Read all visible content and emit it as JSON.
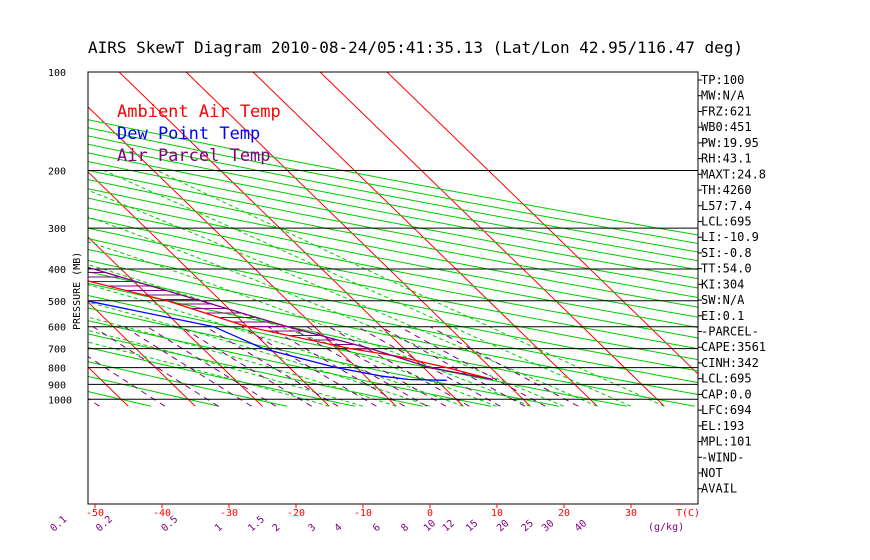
{
  "chart_data": {
    "type": "skewt",
    "title": "AIRS SkewT Diagram 2010-08-24/05:41:35.13 (Lat/Lon 42.95/116.47 deg)",
    "ylabel": "PRESSURE (MB)",
    "xlabel_bottom": "T(C)",
    "mixing_ratio_unit": "(g/kg)",
    "pressure_range": [
      100,
      1050
    ],
    "temperature_range_bottom": [
      -50,
      40
    ],
    "pressure_ticks": [
      "100",
      "200",
      "300",
      "400",
      "500",
      "600",
      "700",
      "800",
      "900",
      "1000"
    ],
    "pressure_tick_values": [
      100,
      200,
      300,
      400,
      500,
      600,
      700,
      800,
      900,
      1000
    ],
    "top_temp_ticks": [
      "-120",
      "-110",
      "-100",
      "-90",
      "-80",
      "-70",
      "-60",
      "-50",
      "-40"
    ],
    "top_temp_values": [
      -120,
      -110,
      -100,
      -90,
      -80,
      -70,
      -60,
      -50,
      -40
    ],
    "bottom_temp_ticks": [
      "-50",
      "-40",
      "-30",
      "-20",
      "-10",
      "0",
      "10",
      "20",
      "30"
    ],
    "bottom_temp_values": [
      -50,
      -40,
      -30,
      -20,
      -10,
      0,
      10,
      20,
      30
    ],
    "mixing_ratio_labels": [
      "0.1",
      "0.2",
      "0.5",
      "1",
      "1.5",
      "2",
      "3",
      "4",
      "6",
      "8",
      "10",
      "12",
      "15",
      "20",
      "25",
      "30",
      "40"
    ],
    "mixing_ratio_values": [
      0.1,
      0.2,
      0.5,
      1,
      1.5,
      2,
      3,
      4,
      6,
      8,
      10,
      12,
      15,
      20,
      25,
      30,
      40
    ],
    "legend": [
      {
        "label": "Ambient Air Temp",
        "color": "#ff0000"
      },
      {
        "label": "Dew Point Temp",
        "color": "#0000ff"
      },
      {
        "label": "Air Parcel Temp",
        "color": "#800080"
      }
    ],
    "colors": {
      "isotherm": "#ff0000",
      "dry_adiabat": "#00cc00",
      "moist_adiabat": "#00cc00",
      "mixing_ratio": "#800080",
      "ambient": "#ff0000",
      "dewpoint": "#0000ff",
      "parcel": "#800080",
      "cape_hatch": "#800080",
      "isobar": "#000000",
      "tick_labels": "#ff0000",
      "mixing_labels": "#800080"
    },
    "series": [
      {
        "name": "Ambient Air Temp",
        "points": [
          [
            870,
            28.5
          ],
          [
            800,
            23.5
          ],
          [
            740,
            18
          ],
          [
            700,
            12
          ],
          [
            600,
            0
          ],
          [
            500,
            -8
          ],
          [
            400,
            -22
          ],
          [
            310,
            -42
          ],
          [
            250,
            -55
          ],
          [
            200,
            -58
          ],
          [
            150,
            -63
          ],
          [
            100,
            -68
          ]
        ]
      },
      {
        "name": "Dew Point Temp",
        "points": [
          [
            875,
            21.5
          ],
          [
            870,
            16
          ],
          [
            850,
            12.5
          ],
          [
            800,
            7
          ],
          [
            700,
            -1
          ],
          [
            600,
            -5
          ],
          [
            500,
            -20
          ],
          [
            400,
            -43
          ],
          [
            330,
            -55
          ],
          [
            250,
            -62
          ],
          [
            200,
            -73
          ],
          [
            150,
            -88
          ],
          [
            100,
            -105
          ]
        ]
      },
      {
        "name": "Air Parcel Temp",
        "points": [
          [
            870,
            28.5
          ],
          [
            800,
            21
          ],
          [
            700,
            15
          ],
          [
            600,
            6
          ],
          [
            500,
            -3
          ],
          [
            400,
            -14
          ],
          [
            300,
            -32
          ],
          [
            250,
            -43
          ],
          [
            200,
            -57
          ],
          [
            150,
            -73
          ],
          [
            100,
            -92
          ]
        ]
      }
    ],
    "indices": [
      "TP:100",
      "MW:N/A",
      "FRZ:621",
      "WB0:451",
      "PW:19.95",
      "RH:43.1",
      "MAXT:24.8",
      "TH:4260",
      "L57:7.4",
      "LCL:695",
      "LI:-10.9",
      "SI:-0.8",
      "TT:54.0",
      "KI:304",
      "SW:N/A",
      "EI:0.1",
      "-PARCEL-",
      "CAPE:3561",
      "CINH:342",
      "LCL:695",
      "CAP:0.0",
      "LFC:694",
      "EL:193",
      "MPL:101",
      "-WIND-",
      "NOT",
      "AVAIL"
    ]
  }
}
